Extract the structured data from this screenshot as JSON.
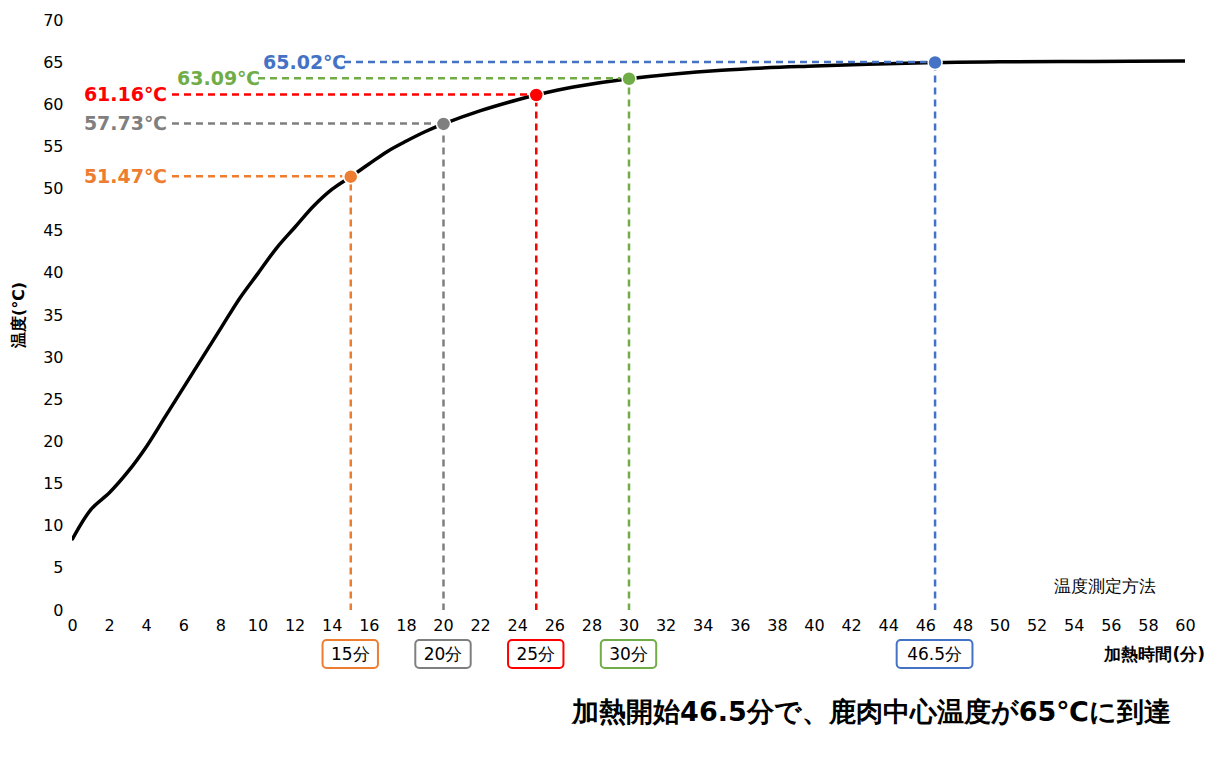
{
  "chart_data": {
    "type": "line",
    "caption": "加熱開始46.5分で、鹿肉中心温度が65℃に到達",
    "x_label": "加熱時間(分)",
    "y_label": "温度(℃)",
    "note": "温度測定方法",
    "color": "#000000",
    "x": [
      0,
      1,
      2,
      3,
      4,
      5,
      6,
      7,
      8,
      9,
      10,
      11,
      12,
      13,
      14,
      15,
      16,
      17,
      18,
      19,
      20,
      22,
      24,
      25,
      27,
      30,
      35,
      40,
      46.5,
      50,
      55,
      60
    ],
    "values": [
      8.5,
      12,
      14,
      16.5,
      19.5,
      23,
      26.5,
      30,
      33.5,
      37,
      40,
      43,
      45.5,
      48,
      50,
      51.47,
      53,
      54.5,
      55.7,
      56.8,
      57.73,
      59.3,
      60.6,
      61.16,
      62.1,
      63.09,
      64.1,
      64.6,
      65.02,
      65.1,
      65.15,
      65.2
    ],
    "xlim": [
      0,
      60
    ],
    "xticks": [
      0,
      2,
      4,
      6,
      8,
      10,
      12,
      14,
      16,
      18,
      20,
      22,
      24,
      26,
      28,
      30,
      32,
      34,
      36,
      38,
      40,
      42,
      44,
      46,
      48,
      50,
      52,
      54,
      56,
      58,
      60
    ],
    "ylim": [
      0,
      70
    ],
    "yticks": [
      0,
      5,
      10,
      15,
      20,
      25,
      30,
      35,
      40,
      45,
      50,
      55,
      60,
      65,
      70
    ],
    "grid": false,
    "annotations": [
      {
        "x": 15,
        "y": 51.47,
        "label": "51.47℃",
        "time_label": "15分",
        "color": "#ed7d31"
      },
      {
        "x": 20,
        "y": 57.73,
        "label": "57.73℃",
        "time_label": "20分",
        "color": "#7f7f7f"
      },
      {
        "x": 25,
        "y": 61.16,
        "label": "61.16℃",
        "time_label": "25分",
        "color": "#ff0000"
      },
      {
        "x": 30,
        "y": 63.09,
        "label": "63.09℃",
        "time_label": "30分",
        "color": "#70ad47"
      },
      {
        "x": 46.5,
        "y": 65.02,
        "label": "65.02℃",
        "time_label": "46.5分",
        "color": "#4472c4"
      }
    ]
  }
}
